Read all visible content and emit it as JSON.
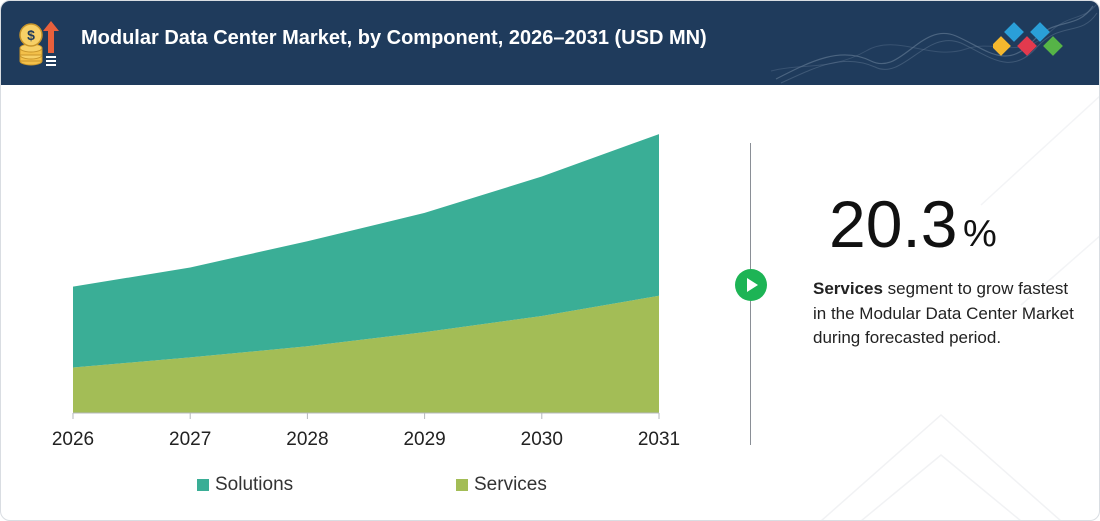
{
  "header": {
    "title": "Modular Data Center Market, by Component, 2026–2031 (USD MN)"
  },
  "colors": {
    "header_bg": "#1f3b5c",
    "solutions": "#3aae96",
    "services": "#a3bd56",
    "accent_green": "#1db455"
  },
  "icons": {
    "header": "coin-growth-icon",
    "logo": "diamond-logo-icon",
    "arrow": "play-arrow-icon"
  },
  "chart_data": {
    "type": "area",
    "stacked": true,
    "x": [
      "2026",
      "2027",
      "2028",
      "2029",
      "2030",
      "2031"
    ],
    "series": [
      {
        "name": "Services",
        "values": [
          45,
          55,
          66,
          80,
          96,
          116
        ]
      },
      {
        "name": "Solutions",
        "values": [
          80,
          89,
          104,
          118,
          138,
          160
        ]
      }
    ],
    "ylim": [
      0,
      285
    ],
    "title": "",
    "xlabel": "",
    "ylabel": "",
    "grid": false,
    "legend_position": "bottom",
    "legend_order": [
      "Solutions",
      "Services"
    ]
  },
  "legend": {
    "solutions": "Solutions",
    "services": "Services"
  },
  "highlight": {
    "value": "20.3",
    "unit": "%",
    "segment": "Services",
    "description": " segment to grow fastest in the Modular Data Center Market during forecasted period."
  }
}
